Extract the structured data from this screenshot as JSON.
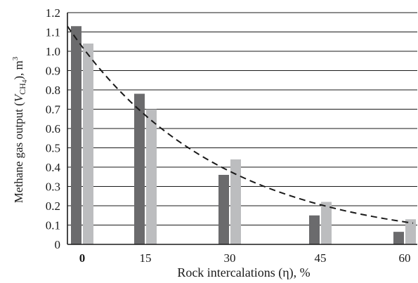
{
  "chart_data": {
    "type": "bar",
    "title": "",
    "xlabel": "Rock intercalations (η), %",
    "ylabel": "Methane gas output (Vₓₓ₄), m³",
    "ylabel_parts": {
      "prefix": "Methane gas output (",
      "var": "V",
      "sub1": "CH",
      "sub2": "4",
      "close": "), m",
      "sup": "3"
    },
    "categories": [
      "0",
      "15",
      "30",
      "45",
      "60"
    ],
    "bold_categories": [
      "0"
    ],
    "series": [
      {
        "color": "#6b6b6d",
        "values": [
          1.13,
          0.78,
          0.36,
          0.15,
          0.065
        ]
      },
      {
        "color": "#bcbdbf",
        "values": [
          1.04,
          0.7,
          0.44,
          0.22,
          0.13
        ]
      }
    ],
    "trendline": {
      "style": "dashed",
      "color": "#1a1a1a",
      "type": "exponential",
      "start": 1.13,
      "end": 0.11
    },
    "ylim": [
      0,
      1.2
    ],
    "yticks": [
      "0",
      "0.1",
      "0.2",
      "0.3",
      "0.4",
      "0.5",
      "0.6",
      "0.7",
      "0.8",
      "0.9",
      "1.0",
      "1.1",
      "1.2"
    ],
    "grid": true,
    "legend": "none"
  }
}
